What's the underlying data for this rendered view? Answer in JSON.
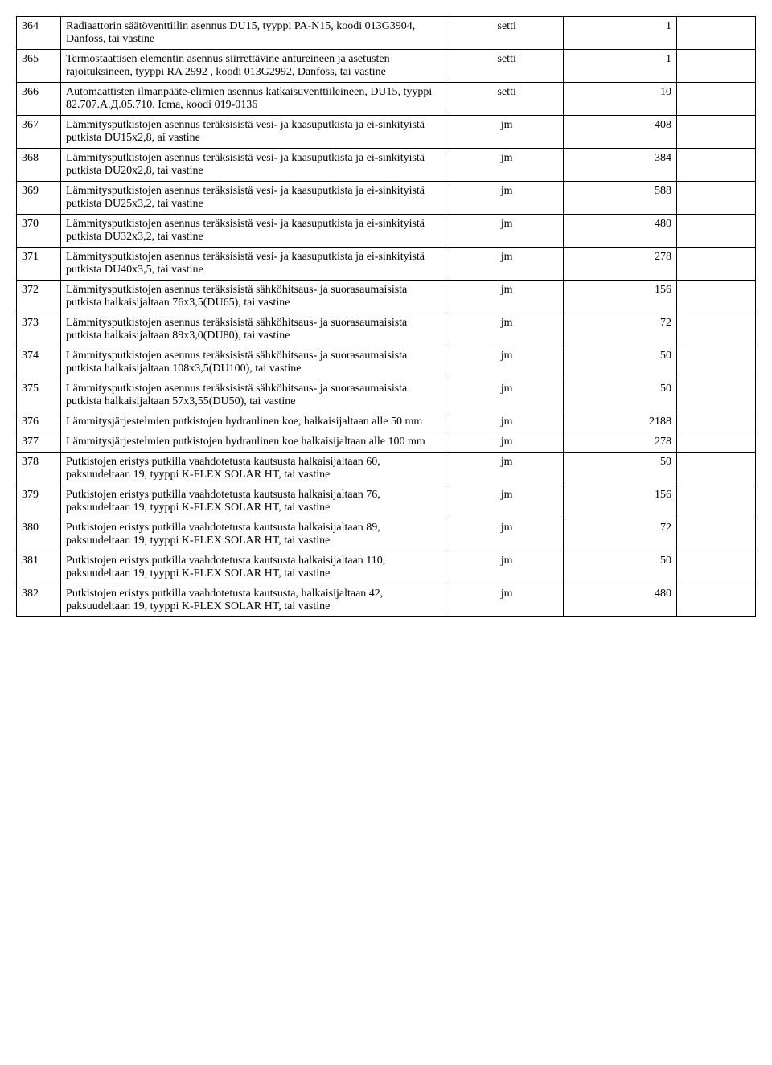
{
  "table": {
    "columns": [
      {
        "key": "num",
        "class": "col-num"
      },
      {
        "key": "desc",
        "class": "col-desc"
      },
      {
        "key": "unit",
        "class": "col-unit"
      },
      {
        "key": "qty",
        "class": "col-qty"
      },
      {
        "key": "empty",
        "class": "col-empty"
      }
    ],
    "rows": [
      {
        "num": "364",
        "desc": "Radiaattorin säätöventtiilin asennus DU15, tyyppi  PA-N15, koodi 013G3904, Danfoss,  tai vastine",
        "unit": "setti",
        "qty": "1",
        "empty": ""
      },
      {
        "num": "365",
        "desc": "Termostaattisen elementin asennus siirrettävine antureineen ja asetusten rajoituksineen, tyyppi RA 2992 , koodi 013G2992, Danfoss,  tai vastine",
        "unit": "setti",
        "qty": "1",
        "empty": ""
      },
      {
        "num": "366",
        "desc": "Automaattisten  ilmanpääte-elimien asennus katkaisuventtiileineen, DU15, tyyppi 82.707.А.Д.05.710, Icma, koodi 019-0136",
        "unit": "setti",
        "qty": "10",
        "empty": ""
      },
      {
        "num": "367",
        "desc": "Lämmitysputkistojen asennus teräksisistä vesi- ja kaasuputkista ja ei-sinkityistä putkista DU15х2,8,  ai vastine",
        "unit": "jm",
        "qty": "408",
        "empty": ""
      },
      {
        "num": "368",
        "desc": "Lämmitysputkistojen asennus teräksisistä vesi- ja kaasuputkista ja ei-sinkityistä putkista DU20х2,8, tai vastine",
        "unit": "jm",
        "qty": "384",
        "empty": ""
      },
      {
        "num": "369",
        "desc": "Lämmitysputkistojen asennus teräksisistä vesi- ja kaasuputkista ja ei-sinkityistä putkista DU25х3,2, tai vastine",
        "unit": "jm",
        "qty": "588",
        "empty": ""
      },
      {
        "num": "370",
        "desc": "Lämmitysputkistojen asennus teräksisistä vesi- ja kaasuputkista ja ei-sinkityistä putkista DU32х3,2, tai vastine",
        "unit": "jm",
        "qty": "480",
        "empty": ""
      },
      {
        "num": "371",
        "desc": "Lämmitysputkistojen asennus teräksisistä vesi- ja kaasuputkista ja ei-sinkityistä putkista DU40х3,5,  tai vastine",
        "unit": "jm",
        "qty": "278",
        "empty": ""
      },
      {
        "num": "372",
        "desc": "Lämmitysputkistojen asennus teräksisistä sähköhitsaus- ja suorasaumaisista putkista halkaisijaltaan 76х3,5(DU65), tai vastine",
        "unit": "jm",
        "qty": "156",
        "empty": ""
      },
      {
        "num": "373",
        "desc": "Lämmitysputkistojen asennus teräksisistä sähköhitsaus- ja suorasaumaisista putkista halkaisijaltaan 89х3,0(DU80), tai vastine",
        "unit": "jm",
        "qty": "72",
        "empty": ""
      },
      {
        "num": "374",
        "desc": "Lämmitysputkistojen asennus teräksisistä sähköhitsaus- ja suorasaumaisista putkista halkaisijaltaan 108х3,5(DU100),  tai vastine",
        "unit": "jm",
        "qty": "50",
        "empty": ""
      },
      {
        "num": "375",
        "desc": "Lämmitysputkistojen asennus teräksisistä sähköhitsaus- ja suorasaumaisista putkista halkaisijaltaan 57х3,55(DU50), tai vastine",
        "unit": "jm",
        "qty": "50",
        "empty": ""
      },
      {
        "num": "376",
        "desc": "Lämmitysjärjestelmien putkistojen hydraulinen koe, halkaisijaltaan alle 50 mm",
        "unit": "jm",
        "qty": "2188",
        "empty": ""
      },
      {
        "num": "377",
        "desc": "Lämmitysjärjestelmien putkistojen hydraulinen koe halkaisijaltaan alle 100 mm",
        "unit": "jm",
        "qty": "278",
        "empty": ""
      },
      {
        "num": "378",
        "desc": "Putkistojen eristys putkilla vaahdotetusta kautsusta halkaisijaltaan 60, paksuudeltaan 19, tyyppi K-FLEX SOLAR HT, tai vastine",
        "unit": "jm",
        "qty": "50",
        "empty": ""
      },
      {
        "num": "379",
        "desc": "Putkistojen eristys putkilla vaahdotetusta kautsusta halkaisijaltaan 76, paksuudeltaan 19, tyyppi K-FLEX SOLAR HT, tai vastine",
        "unit": "jm",
        "qty": "156",
        "empty": ""
      },
      {
        "num": "380",
        "desc": "Putkistojen eristys putkilla vaahdotetusta kautsusta halkaisijaltaan 89, paksuudeltaan 19, tyyppi K-FLEX SOLAR HT, tai vastine",
        "unit": "jm",
        "qty": "72",
        "empty": ""
      },
      {
        "num": "381",
        "desc": "Putkistojen eristys putkilla vaahdotetusta kautsusta halkaisijaltaan 110, paksuudeltaan 19, tyyppi K-FLEX SOLAR HT, tai vastine",
        "unit": "jm",
        "qty": "50",
        "empty": ""
      },
      {
        "num": "382",
        "desc": "Putkistojen eristys putkilla vaahdotetusta kautsusta, halkaisijaltaan 42, paksuudeltaan 19, tyyppi K-FLEX SOLAR HT, tai vastine",
        "unit": "jm",
        "qty": "480",
        "empty": ""
      }
    ]
  },
  "styling": {
    "font_family": "Times New Roman",
    "font_size_pt": 11,
    "border_color": "#000000",
    "background_color": "#ffffff",
    "text_color": "#000000"
  }
}
